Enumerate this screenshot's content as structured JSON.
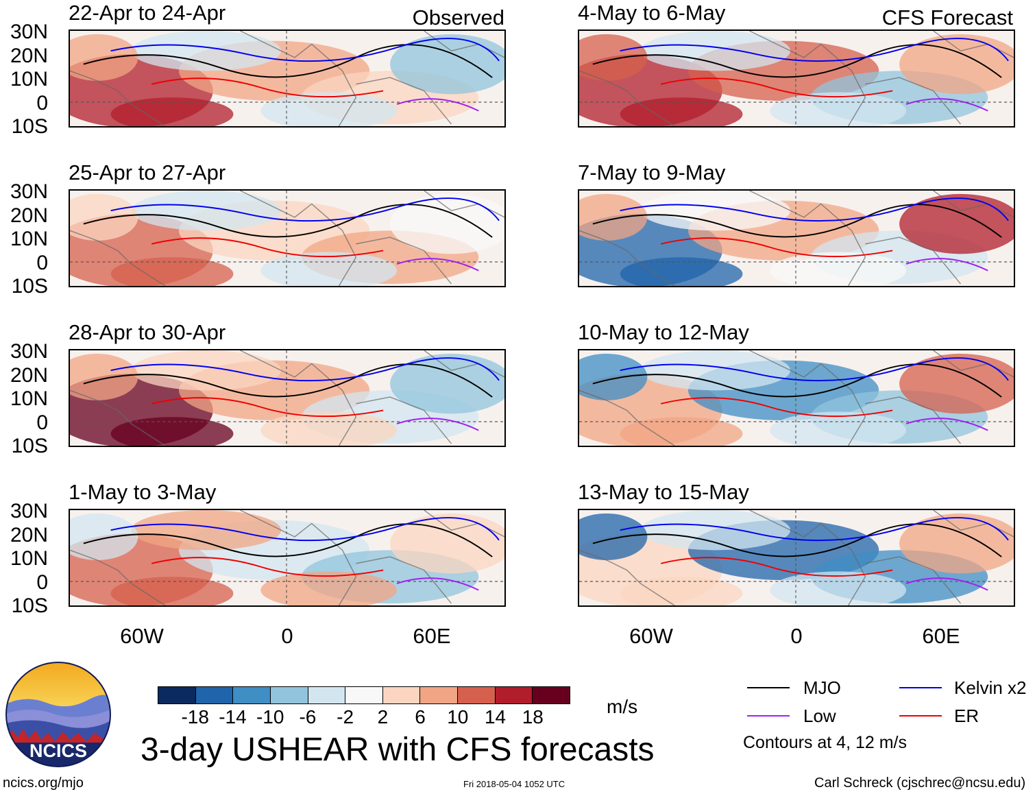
{
  "figure_title": "3-day USHEAR with CFS forecasts",
  "panel_group_labels": {
    "observed": "Observed",
    "forecast": "CFS Forecast"
  },
  "panels": [
    {
      "title": "22-Apr to 24-Apr",
      "type": "Observed"
    },
    {
      "title": "25-Apr to 27-Apr",
      "type": "Observed"
    },
    {
      "title": "28-Apr to 30-Apr",
      "type": "Observed"
    },
    {
      "title": "1-May to 3-May",
      "type": "Observed"
    },
    {
      "title": "4-May to 6-May",
      "type": "CFS Forecast"
    },
    {
      "title": "7-May to 9-May",
      "type": "CFS Forecast"
    },
    {
      "title": "10-May to 12-May",
      "type": "CFS Forecast"
    },
    {
      "title": "13-May to 15-May",
      "type": "CFS Forecast"
    }
  ],
  "y_axis_labels": [
    "30N",
    "20N",
    "10N",
    "0",
    "10S"
  ],
  "x_axis_labels": [
    "60W",
    "0",
    "60E"
  ],
  "colorbar": {
    "ticks": [
      "-18",
      "-14",
      "-10",
      "-6",
      "-2",
      "2",
      "6",
      "10",
      "14",
      "18"
    ],
    "colors": [
      "#0b2a5e",
      "#2064ab",
      "#3f8ec4",
      "#92c4de",
      "#d3e6f0",
      "#f8f8f8",
      "#fbd5c0",
      "#f2a584",
      "#d6604e",
      "#b11d2b",
      "#67001f"
    ],
    "units": "m/s"
  },
  "legend": {
    "items": [
      {
        "label": "MJO",
        "color": "#000000"
      },
      {
        "label": "Kelvin x2",
        "color": "#0000ee"
      },
      {
        "label": "Low",
        "color": "#a020f0"
      },
      {
        "label": "ER",
        "color": "#ee0000"
      }
    ],
    "note": "Contours at 4, 12 m/s"
  },
  "logo_text": "NCICS",
  "footer": {
    "url": "ncics.org/mjo",
    "timestamp": "Fri 2018-05-04 1052 UTC",
    "author": "Carl Schreck (cjschrec@ncsu.edu)"
  }
}
